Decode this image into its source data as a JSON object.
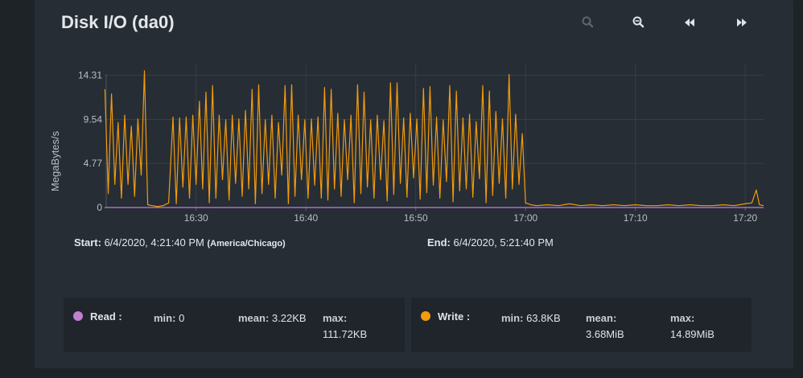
{
  "title": "Disk I/O (da0)",
  "toolbar": {
    "zoom_in_icon": "zoom-in-icon",
    "zoom_out_icon": "zoom-out-icon",
    "rewind_icon": "rewind-icon",
    "fast_forward_icon": "fast-forward-icon"
  },
  "range": {
    "start_label": "Start:",
    "start_value": "6/4/2020, 4:21:40 PM",
    "timezone": "(America/Chicago)",
    "end_label": "End:",
    "end_value": "6/4/2020, 5:21:40 PM"
  },
  "legend": {
    "read": {
      "label": "Read :",
      "min_label": "min:",
      "min": "0",
      "mean_label": "mean:",
      "mean": "3.22KB",
      "max_label": "max:",
      "max": "111.72KB",
      "color": "#c27fd0"
    },
    "write": {
      "label": "Write :",
      "min_label": "min:",
      "min": "63.8KB",
      "mean_label": "mean:",
      "mean": "3.68MiB",
      "max_label": "max:",
      "max": "14.89MiB",
      "color": "#f29b0c"
    }
  },
  "chart_data": {
    "type": "line",
    "ylabel": "MegaBytes/s",
    "yticks": [
      "0",
      "4.77",
      "9.54",
      "14.31"
    ],
    "ytick_values": [
      0,
      4.77,
      9.54,
      14.31
    ],
    "xticks": [
      "16:30",
      "16:40",
      "16:50",
      "17:00",
      "17:10",
      "17:20"
    ],
    "xtick_minutes": [
      30,
      40,
      50,
      60,
      70,
      80
    ],
    "xlim_minutes": [
      21.67,
      81.67
    ],
    "ylim": [
      0,
      15.5
    ],
    "grid": true,
    "series": [
      {
        "name": "Read",
        "color": "#c27fd0",
        "points": [
          [
            21.67,
            0
          ],
          [
            81.67,
            0
          ]
        ]
      },
      {
        "name": "Write",
        "color": "#f29b0c",
        "points": [
          [
            21.7,
            12.8
          ],
          [
            22.0,
            1.5
          ],
          [
            22.3,
            12.3
          ],
          [
            22.6,
            2.5
          ],
          [
            22.9,
            9.2
          ],
          [
            23.2,
            1.0
          ],
          [
            23.5,
            10.0
          ],
          [
            23.8,
            2.5
          ],
          [
            24.1,
            8.8
          ],
          [
            24.4,
            1.2
          ],
          [
            24.7,
            9.6
          ],
          [
            25.0,
            3.5
          ],
          [
            25.3,
            14.8
          ],
          [
            25.6,
            0.3
          ],
          [
            26.0,
            0.2
          ],
          [
            26.5,
            0.1
          ],
          [
            27.0,
            0.2
          ],
          [
            27.5,
            0.5
          ],
          [
            27.9,
            9.8
          ],
          [
            28.2,
            0.4
          ],
          [
            28.5,
            9.7
          ],
          [
            28.8,
            2.2
          ],
          [
            29.1,
            9.8
          ],
          [
            29.4,
            1.0
          ],
          [
            29.7,
            10.0
          ],
          [
            30.0,
            2.5
          ],
          [
            30.3,
            11.5
          ],
          [
            30.6,
            2.0
          ],
          [
            30.9,
            12.5
          ],
          [
            31.2,
            0.5
          ],
          [
            31.5,
            13.2
          ],
          [
            31.8,
            1.0
          ],
          [
            32.1,
            10.0
          ],
          [
            32.4,
            3.0
          ],
          [
            32.7,
            9.5
          ],
          [
            33.0,
            0.8
          ],
          [
            33.3,
            10.0
          ],
          [
            33.6,
            2.6
          ],
          [
            33.9,
            9.6
          ],
          [
            34.2,
            1.2
          ],
          [
            34.5,
            10.5
          ],
          [
            34.8,
            2.0
          ],
          [
            35.1,
            12.8
          ],
          [
            35.4,
            0.4
          ],
          [
            35.7,
            13.3
          ],
          [
            36.0,
            1.5
          ],
          [
            36.3,
            9.5
          ],
          [
            36.6,
            2.5
          ],
          [
            36.9,
            10.0
          ],
          [
            37.2,
            1.0
          ],
          [
            37.5,
            9.2
          ],
          [
            37.8,
            3.5
          ],
          [
            38.1,
            13.2
          ],
          [
            38.4,
            0.4
          ],
          [
            38.7,
            13.3
          ],
          [
            39.0,
            1.2
          ],
          [
            39.3,
            10.0
          ],
          [
            39.6,
            3.0
          ],
          [
            39.9,
            9.5
          ],
          [
            40.2,
            1.0
          ],
          [
            40.5,
            9.6
          ],
          [
            40.8,
            2.4
          ],
          [
            41.1,
            9.8
          ],
          [
            41.4,
            1.0
          ],
          [
            41.7,
            13.0
          ],
          [
            42.0,
            0.8
          ],
          [
            42.3,
            12.8
          ],
          [
            42.6,
            2.0
          ],
          [
            42.9,
            10.2
          ],
          [
            43.2,
            1.2
          ],
          [
            43.5,
            9.5
          ],
          [
            43.8,
            3.0
          ],
          [
            44.1,
            10.0
          ],
          [
            44.4,
            0.5
          ],
          [
            44.7,
            13.3
          ],
          [
            45.0,
            1.5
          ],
          [
            45.3,
            12.5
          ],
          [
            45.6,
            2.2
          ],
          [
            45.9,
            9.5
          ],
          [
            46.2,
            1.0
          ],
          [
            46.5,
            10.0
          ],
          [
            46.8,
            3.0
          ],
          [
            47.1,
            9.4
          ],
          [
            47.4,
            0.7
          ],
          [
            47.7,
            13.5
          ],
          [
            48.0,
            1.4
          ],
          [
            48.3,
            13.5
          ],
          [
            48.6,
            2.6
          ],
          [
            48.9,
            9.7
          ],
          [
            49.2,
            1.1
          ],
          [
            49.5,
            10.2
          ],
          [
            49.8,
            3.2
          ],
          [
            50.1,
            9.6
          ],
          [
            50.4,
            0.9
          ],
          [
            50.7,
            12.9
          ],
          [
            51.0,
            1.6
          ],
          [
            51.3,
            13.1
          ],
          [
            51.6,
            2.4
          ],
          [
            51.9,
            9.8
          ],
          [
            52.2,
            1.0
          ],
          [
            52.5,
            9.5
          ],
          [
            52.8,
            2.8
          ],
          [
            53.1,
            13.2
          ],
          [
            53.4,
            0.6
          ],
          [
            53.7,
            12.6
          ],
          [
            54.0,
            1.8
          ],
          [
            54.3,
            9.7
          ],
          [
            54.6,
            2.0
          ],
          [
            54.9,
            10.1
          ],
          [
            55.2,
            1.1
          ],
          [
            55.5,
            9.3
          ],
          [
            55.8,
            3.1
          ],
          [
            56.1,
            13.2
          ],
          [
            56.4,
            0.5
          ],
          [
            56.7,
            12.6
          ],
          [
            57.0,
            1.3
          ],
          [
            57.3,
            10.4
          ],
          [
            57.6,
            2.6
          ],
          [
            57.9,
            9.6
          ],
          [
            58.2,
            1.0
          ],
          [
            58.5,
            14.4
          ],
          [
            58.8,
            2.0
          ],
          [
            59.1,
            10.1
          ],
          [
            59.4,
            2.5
          ],
          [
            59.7,
            8.0
          ],
          [
            60.0,
            0.5
          ],
          [
            60.5,
            0.3
          ],
          [
            61.0,
            0.2
          ],
          [
            62.0,
            0.3
          ],
          [
            63.0,
            0.2
          ],
          [
            64.0,
            0.4
          ],
          [
            65.0,
            0.2
          ],
          [
            66.0,
            0.3
          ],
          [
            67.0,
            0.2
          ],
          [
            68.0,
            0.3
          ],
          [
            69.0,
            0.2
          ],
          [
            70.0,
            0.3
          ],
          [
            71.0,
            0.2
          ],
          [
            72.0,
            0.2
          ],
          [
            73.0,
            0.3
          ],
          [
            74.0,
            0.2
          ],
          [
            75.0,
            0.3
          ],
          [
            76.0,
            0.2
          ],
          [
            77.0,
            0.2
          ],
          [
            78.0,
            0.3
          ],
          [
            79.0,
            0.2
          ],
          [
            80.0,
            0.4
          ],
          [
            80.6,
            0.5
          ],
          [
            81.0,
            1.9
          ],
          [
            81.3,
            0.3
          ],
          [
            81.67,
            0.2
          ]
        ]
      }
    ]
  }
}
